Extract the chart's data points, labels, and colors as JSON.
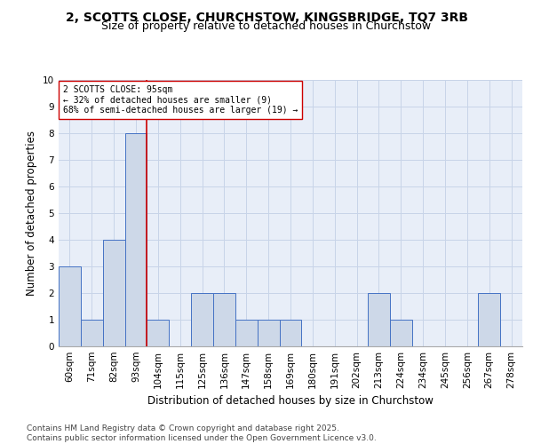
{
  "title_line1": "2, SCOTTS CLOSE, CHURCHSTOW, KINGSBRIDGE, TQ7 3RB",
  "title_line2": "Size of property relative to detached houses in Churchstow",
  "xlabel": "Distribution of detached houses by size in Churchstow",
  "ylabel": "Number of detached properties",
  "categories": [
    "60sqm",
    "71sqm",
    "82sqm",
    "93sqm",
    "104sqm",
    "115sqm",
    "125sqm",
    "136sqm",
    "147sqm",
    "158sqm",
    "169sqm",
    "180sqm",
    "191sqm",
    "202sqm",
    "213sqm",
    "224sqm",
    "234sqm",
    "245sqm",
    "256sqm",
    "267sqm",
    "278sqm"
  ],
  "values": [
    3,
    1,
    4,
    8,
    1,
    0,
    2,
    2,
    1,
    1,
    1,
    0,
    0,
    0,
    2,
    1,
    0,
    0,
    0,
    2,
    0
  ],
  "bar_color": "#cdd8e8",
  "bar_edge_color": "#4472c4",
  "vline_x": 3.5,
  "vline_color": "#cc0000",
  "annotation_text": "2 SCOTTS CLOSE: 95sqm\n← 32% of detached houses are smaller (9)\n68% of semi-detached houses are larger (19) →",
  "annotation_box_color": "#ffffff",
  "annotation_box_edge": "#cc0000",
  "ylim": [
    0,
    10
  ],
  "yticks": [
    0,
    1,
    2,
    3,
    4,
    5,
    6,
    7,
    8,
    9,
    10
  ],
  "grid_color": "#c8d4e8",
  "background_color": "#e8eef8",
  "footer_text": "Contains HM Land Registry data © Crown copyright and database right 2025.\nContains public sector information licensed under the Open Government Licence v3.0.",
  "title_fontsize": 10,
  "subtitle_fontsize": 9,
  "axis_label_fontsize": 8.5,
  "tick_fontsize": 7.5,
  "annotation_fontsize": 7,
  "footer_fontsize": 6.5
}
